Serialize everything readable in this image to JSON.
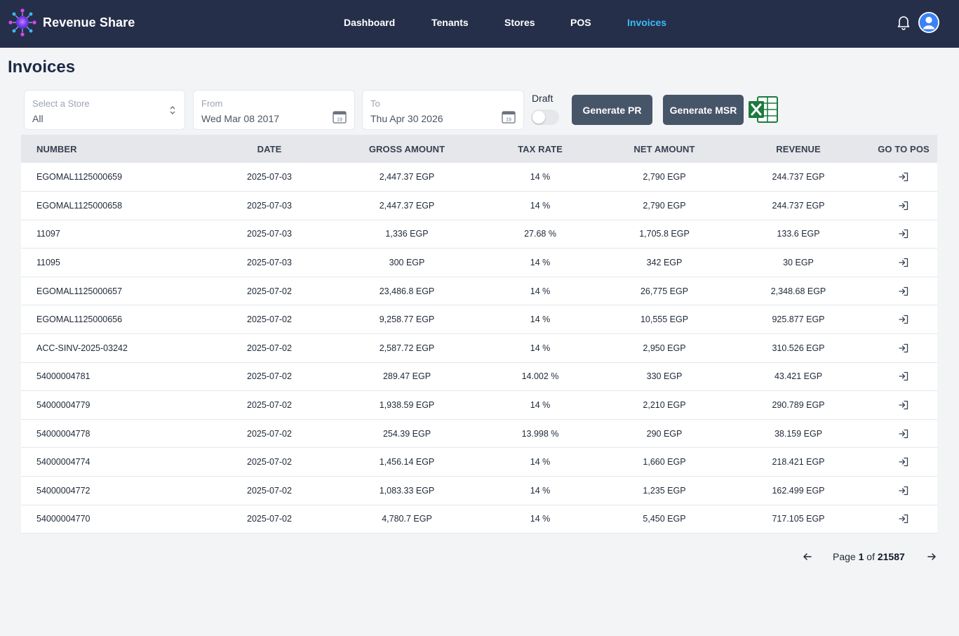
{
  "app": {
    "name": "Revenue Share",
    "logo_icon": "gear-network-logo-icon"
  },
  "nav": {
    "items": [
      {
        "label": "Dashboard",
        "active": false
      },
      {
        "label": "Tenants",
        "active": false
      },
      {
        "label": "Stores",
        "active": false
      },
      {
        "label": "POS",
        "active": false
      },
      {
        "label": "Invoices",
        "active": true
      }
    ],
    "icons": [
      "bell-icon",
      "user-avatar-icon"
    ]
  },
  "page": {
    "title": "Invoices"
  },
  "filters": {
    "store": {
      "label": "Select a Store",
      "value": "All"
    },
    "from": {
      "label": "From",
      "value": "Wed Mar 08 2017"
    },
    "to": {
      "label": "To",
      "value": "Thu Apr 30 2026"
    },
    "calendar_day": "19",
    "draft": {
      "label": "Draft",
      "on": false
    }
  },
  "actions": {
    "generate_pr": "Generate PR",
    "generate_msr": "Generate MSR",
    "excel_icon": "excel-export-icon"
  },
  "table": {
    "columns": [
      "NUMBER",
      "DATE",
      "GROSS AMOUNT",
      "TAX RATE",
      "NET AMOUNT",
      "REVENUE",
      "GO TO POS"
    ],
    "rows": [
      [
        "EGOMAL1125000659",
        "2025-07-03",
        "2,447.37 EGP",
        "14 %",
        "2,790 EGP",
        "244.737 EGP"
      ],
      [
        "EGOMAL1125000658",
        "2025-07-03",
        "2,447.37 EGP",
        "14 %",
        "2,790 EGP",
        "244.737 EGP"
      ],
      [
        "11097",
        "2025-07-03",
        "1,336 EGP",
        "27.68 %",
        "1,705.8 EGP",
        "133.6 EGP"
      ],
      [
        "11095",
        "2025-07-03",
        "300 EGP",
        "14 %",
        "342 EGP",
        "30 EGP"
      ],
      [
        "EGOMAL1125000657",
        "2025-07-02",
        "23,486.8 EGP",
        "14 %",
        "26,775 EGP",
        "2,348.68 EGP"
      ],
      [
        "EGOMAL1125000656",
        "2025-07-02",
        "9,258.77 EGP",
        "14 %",
        "10,555 EGP",
        "925.877 EGP"
      ],
      [
        "ACC-SINV-2025-03242",
        "2025-07-02",
        "2,587.72 EGP",
        "14 %",
        "2,950 EGP",
        "310.526 EGP"
      ],
      [
        "54000004781",
        "2025-07-02",
        "289.47 EGP",
        "14.002 %",
        "330 EGP",
        "43.421 EGP"
      ],
      [
        "54000004779",
        "2025-07-02",
        "1,938.59 EGP",
        "14 %",
        "2,210 EGP",
        "290.789 EGP"
      ],
      [
        "54000004778",
        "2025-07-02",
        "254.39 EGP",
        "13.998 %",
        "290 EGP",
        "38.159 EGP"
      ],
      [
        "54000004774",
        "2025-07-02",
        "1,456.14 EGP",
        "14 %",
        "1,660 EGP",
        "218.421 EGP"
      ],
      [
        "54000004772",
        "2025-07-02",
        "1,083.33 EGP",
        "14 %",
        "1,235 EGP",
        "162.499 EGP"
      ],
      [
        "54000004770",
        "2025-07-02",
        "4,780.7 EGP",
        "14 %",
        "5,450 EGP",
        "717.105 EGP"
      ]
    ],
    "row_action_icon": "go-to-pos-icon"
  },
  "pagination": {
    "page_word": "Page",
    "current": "1",
    "of_word": "of",
    "total": "21587",
    "prev_icon": "arrow-left-icon",
    "next_icon": "arrow-right-icon"
  },
  "colors": {
    "header_bg": "#262f4a",
    "active_nav": "#38bdf8",
    "button_bg": "#475569",
    "excel_green": "#1d7a3e"
  }
}
